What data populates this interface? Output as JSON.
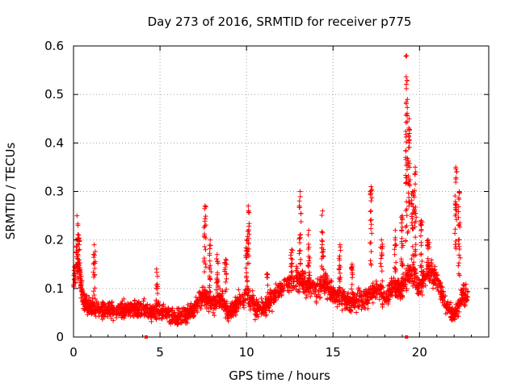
{
  "chart_data": {
    "type": "scatter",
    "title": "Day 273 of 2016, SRMTID for receiver p775",
    "xlabel": "GPS time / hours",
    "ylabel": "SRMTID / TECUs",
    "xlim": [
      0,
      24
    ],
    "ylim": [
      0,
      0.6
    ],
    "xticks": [
      0,
      5,
      10,
      15,
      20
    ],
    "xtick_labels": [
      "0",
      "5",
      "10",
      "15",
      "20"
    ],
    "yticks": [
      0,
      0.1,
      0.2,
      0.3,
      0.4,
      0.5,
      0.6
    ],
    "ytick_labels": [
      "0",
      "0.1",
      "0.2",
      "0.3",
      "0.4",
      "0.5",
      "0.6"
    ],
    "grid": true,
    "marker": "plus",
    "color": "#ff0000",
    "axis_markers_x": [
      4.2,
      19.25
    ],
    "series": [
      {
        "name": "SRMTID",
        "trend": [
          [
            0.0,
            0.12
          ],
          [
            0.3,
            0.14
          ],
          [
            0.6,
            0.07
          ],
          [
            1.0,
            0.06
          ],
          [
            1.5,
            0.06
          ],
          [
            2.0,
            0.055
          ],
          [
            3.0,
            0.055
          ],
          [
            4.0,
            0.06
          ],
          [
            4.5,
            0.05
          ],
          [
            5.0,
            0.055
          ],
          [
            6.0,
            0.04
          ],
          [
            6.5,
            0.045
          ],
          [
            7.0,
            0.06
          ],
          [
            7.5,
            0.09
          ],
          [
            8.0,
            0.07
          ],
          [
            8.5,
            0.08
          ],
          [
            9.0,
            0.05
          ],
          [
            9.5,
            0.07
          ],
          [
            10.0,
            0.09
          ],
          [
            10.5,
            0.06
          ],
          [
            11.0,
            0.06
          ],
          [
            11.5,
            0.08
          ],
          [
            12.0,
            0.1
          ],
          [
            12.5,
            0.11
          ],
          [
            13.0,
            0.12
          ],
          [
            13.5,
            0.11
          ],
          [
            14.0,
            0.1
          ],
          [
            14.5,
            0.11
          ],
          [
            15.0,
            0.09
          ],
          [
            15.5,
            0.08
          ],
          [
            16.0,
            0.07
          ],
          [
            16.5,
            0.08
          ],
          [
            17.0,
            0.08
          ],
          [
            17.5,
            0.1
          ],
          [
            18.0,
            0.08
          ],
          [
            18.5,
            0.1
          ],
          [
            19.0,
            0.1
          ],
          [
            19.5,
            0.14
          ],
          [
            20.0,
            0.1
          ],
          [
            20.5,
            0.14
          ],
          [
            21.0,
            0.12
          ],
          [
            21.5,
            0.07
          ],
          [
            22.0,
            0.04
          ],
          [
            22.5,
            0.09
          ],
          [
            22.8,
            0.08
          ]
        ],
        "spikes": [
          [
            0.2,
            0.25,
            0.12
          ],
          [
            0.3,
            0.21,
            0.1
          ],
          [
            1.2,
            0.19,
            0.08
          ],
          [
            4.8,
            0.14,
            0.05
          ],
          [
            7.6,
            0.27,
            0.12
          ],
          [
            7.9,
            0.2,
            0.08
          ],
          [
            8.3,
            0.17,
            0.07
          ],
          [
            8.8,
            0.16,
            0.06
          ],
          [
            10.1,
            0.27,
            0.13
          ],
          [
            10.0,
            0.2,
            0.1
          ],
          [
            11.2,
            0.13,
            0.06
          ],
          [
            12.6,
            0.18,
            0.1
          ],
          [
            13.1,
            0.3,
            0.14
          ],
          [
            13.6,
            0.22,
            0.1
          ],
          [
            14.4,
            0.26,
            0.12
          ],
          [
            15.4,
            0.19,
            0.09
          ],
          [
            16.1,
            0.15,
            0.07
          ],
          [
            17.2,
            0.31,
            0.14
          ],
          [
            17.8,
            0.2,
            0.09
          ],
          [
            18.6,
            0.22,
            0.1
          ],
          [
            19.0,
            0.25,
            0.12
          ],
          [
            19.25,
            0.58,
            0.18
          ],
          [
            19.4,
            0.45,
            0.2
          ],
          [
            19.6,
            0.3,
            0.14
          ],
          [
            19.75,
            0.35,
            0.16
          ],
          [
            20.1,
            0.24,
            0.12
          ],
          [
            20.5,
            0.2,
            0.12
          ],
          [
            22.1,
            0.35,
            0.16
          ],
          [
            22.3,
            0.3,
            0.12
          ]
        ],
        "spread": 0.035,
        "point_count": 2400
      }
    ]
  }
}
